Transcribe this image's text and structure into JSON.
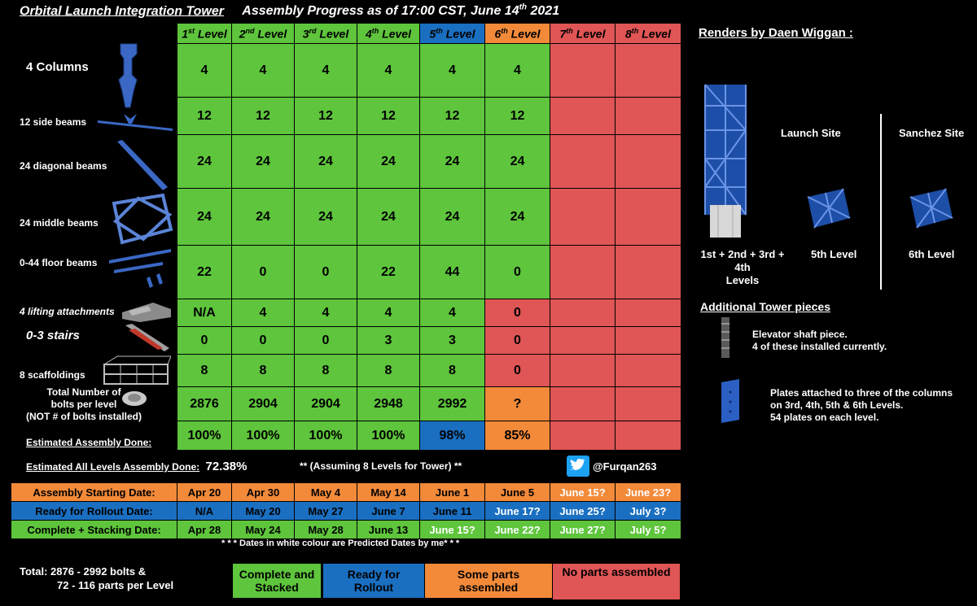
{
  "header": {
    "title": "Orbital Launch Integration Tower",
    "progress_prefix": "Assembly Progress as of 17:00 CST, June 14",
    "progress_sup": "th",
    "progress_suffix": " 2021"
  },
  "levels": [
    {
      "num": "1",
      "sup": "st",
      "word": " Level"
    },
    {
      "num": "2",
      "sup": "nd",
      "word": " Level"
    },
    {
      "num": "3",
      "sup": "rd",
      "word": " Level"
    },
    {
      "num": "4",
      "sup": "th",
      "word": " Level"
    },
    {
      "num": "5",
      "sup": "th",
      "word": " Level"
    },
    {
      "num": "6",
      "sup": "th",
      "word": " Level"
    },
    {
      "num": "7",
      "sup": "th",
      "word": " Level"
    },
    {
      "num": "8",
      "sup": "th",
      "word": " Level"
    }
  ],
  "rows": {
    "columns": {
      "label": "4 Columns",
      "values": [
        "4",
        "4",
        "4",
        "4",
        "4",
        "4",
        "",
        ""
      ]
    },
    "side_beams": {
      "label": "12 side beams",
      "values": [
        "12",
        "12",
        "12",
        "12",
        "12",
        "12",
        "",
        ""
      ]
    },
    "diagonal_beams": {
      "label": "24 diagonal beams",
      "values": [
        "24",
        "24",
        "24",
        "24",
        "24",
        "24",
        "",
        ""
      ]
    },
    "middle_beams": {
      "label": "24 middle beams",
      "values": [
        "24",
        "24",
        "24",
        "24",
        "24",
        "24",
        "",
        ""
      ]
    },
    "floor_beams": {
      "label": "0-44 floor beams",
      "values": [
        "22",
        "0",
        "0",
        "22",
        "44",
        "0",
        "",
        ""
      ]
    },
    "lifting": {
      "label": "4 lifting attachments",
      "values": [
        "N/A",
        "4",
        "4",
        "4",
        "4",
        "0",
        "",
        ""
      ]
    },
    "stairs": {
      "label": "0-3 stairs",
      "values": [
        "0",
        "0",
        "0",
        "3",
        "3",
        "0",
        "",
        ""
      ]
    },
    "scaffold": {
      "label": "8 scaffoldings",
      "values": [
        "8",
        "8",
        "8",
        "8",
        "8",
        "0",
        "",
        ""
      ]
    },
    "bolts": {
      "label_line1": "Total Number of",
      "label_line2": "bolts per level",
      "label_line3": "(NOT # of bolts installed)",
      "values": [
        "2876",
        "2904",
        "2904",
        "2948",
        "2992",
        "?",
        "",
        ""
      ]
    },
    "done": {
      "label": "Estimated Assembly Done:",
      "values": [
        "100%",
        "100%",
        "100%",
        "100%",
        "98%",
        "85%",
        "",
        ""
      ]
    }
  },
  "summary": {
    "all_levels_label": "Estimated All Levels Assembly Done:",
    "all_levels_value": "72.38%",
    "assumption": "** (Assuming 8 Levels for Tower) **",
    "twitter_handle": "@Furqan263"
  },
  "dates": {
    "start": {
      "label": "Assembly Starting Date:",
      "values": [
        "Apr 20",
        "Apr 30",
        "May 4",
        "May 14",
        "June 1",
        "June 5",
        "June 15?",
        "June 23?"
      ]
    },
    "rollout": {
      "label": "Ready for Rollout Date:",
      "values": [
        "N/A",
        "May 20",
        "May 27",
        "June 7",
        "June 11",
        "June 17?",
        "June 25?",
        "July 3?"
      ]
    },
    "complete": {
      "label": "Complete + Stacking Date:",
      "values": [
        "Apr 28",
        "May 24",
        "May 28",
        "June 13",
        "June 15?",
        "June 22?",
        "June 27?",
        "July 5?"
      ]
    },
    "note": "* * * Dates in white colour are Predicted Dates by me* * *"
  },
  "totals": {
    "line1": "Total:  2876 - 2992 bolts &",
    "line2": "72 - 116 parts per Level"
  },
  "legend": {
    "complete": {
      "line1": "Complete and",
      "line2": "Stacked"
    },
    "rollout": {
      "line1": "Ready for",
      "line2": "Rollout"
    },
    "some": {
      "line1": "Some parts",
      "line2": "assembled"
    },
    "none": {
      "line1": "No parts assembled"
    }
  },
  "renders": {
    "title": "Renders by Daen Wiggan  :",
    "launch_site": "Launch Site",
    "sanchez_site": "Sanchez Site",
    "tower_caption_line1": "1st + 2nd + 3rd + 4th",
    "tower_caption_line2": "Levels",
    "level5_caption": "5th Level",
    "level6_caption": "6th Level"
  },
  "additional": {
    "title": "Additional Tower pieces",
    "elevator_line1": "Elevator shaft piece.",
    "elevator_line2": "4 of these installed currently.",
    "plates_line1": "Plates attached to three of the columns",
    "plates_line2": "on 3rd, 4th, 5th & 6th Levels.",
    "plates_line3": "54 plates on each level."
  },
  "colors": {
    "green": "#5ec53c",
    "blue": "#1a6fc1",
    "orange": "#f28a3a",
    "red": "#e05555"
  }
}
